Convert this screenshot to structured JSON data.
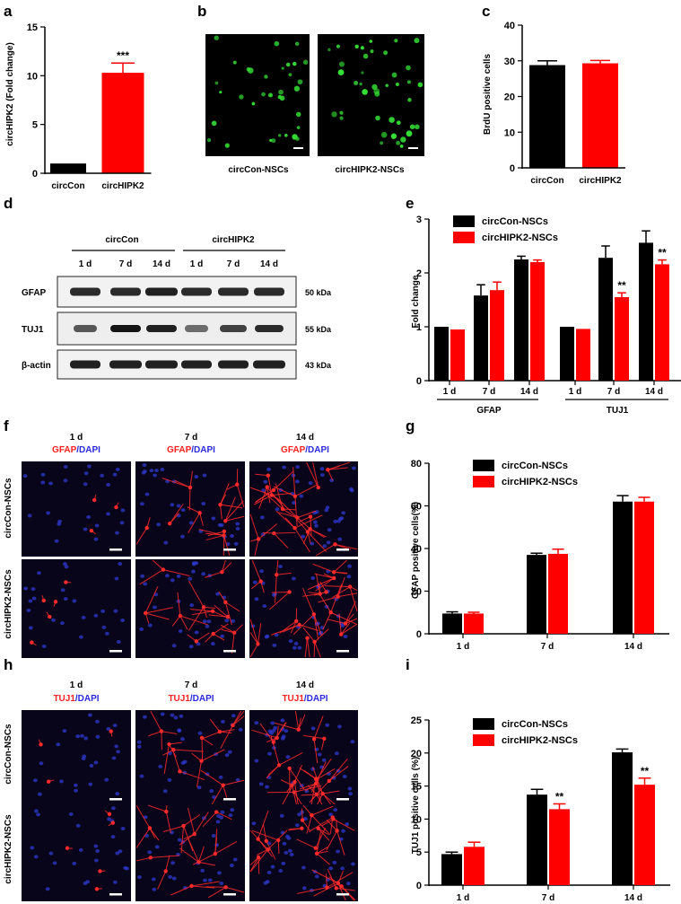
{
  "colors": {
    "con": "#000000",
    "hipk": "#ff0000",
    "green": "#35e035",
    "gfap_red": "#ff2a2a",
    "dapi_blue": "#2f3ad0"
  },
  "panels": {
    "a": {
      "label": "a",
      "ylabel": "circHIPK2 (Fold change)",
      "sig": "***"
    },
    "b": {
      "label": "b",
      "img1": "circCon-NSCs",
      "img2": "circHIPK2-NSCs"
    },
    "c": {
      "label": "c",
      "ylabel": "BrdU positive cells"
    },
    "d": {
      "label": "d",
      "group1": "circCon",
      "group2": "circHIPK2",
      "days": [
        "1 d",
        "7 d",
        "14 d",
        "1 d",
        "7 d",
        "14 d"
      ],
      "rows": [
        {
          "name": "GFAP",
          "kda": "50 kDa"
        },
        {
          "name": "TUJ1",
          "kda": "55 kDa"
        },
        {
          "name": "β-actin",
          "kda": "43 kDa"
        }
      ]
    },
    "e": {
      "label": "e",
      "ylabel": "Fold change",
      "group1": "GFAP",
      "group2": "TUJ1"
    },
    "f": {
      "label": "f",
      "row1": "circCon-NSCs",
      "row2": "circHIPK2-NSCs",
      "cols": [
        {
          "day": "1 d",
          "marker": "GFAP",
          "dapi": "/DAPI"
        },
        {
          "day": "7 d",
          "marker": "GFAP",
          "dapi": "/DAPI"
        },
        {
          "day": "14 d",
          "marker": "GFAP",
          "dapi": "/DAPI"
        }
      ]
    },
    "g": {
      "label": "g",
      "ylabel": "GFAP positive cells(%)"
    },
    "h": {
      "label": "h",
      "row1": "circCon-NSCs",
      "row2": "circHIPK2-NSCs",
      "cols": [
        {
          "day": "1 d",
          "marker": "TUJ1",
          "dapi": "/DAPI"
        },
        {
          "day": "7 d",
          "marker": "TUJ1",
          "dapi": "/DAPI"
        },
        {
          "day": "14 d",
          "marker": "TUJ1",
          "dapi": "/DAPI"
        }
      ]
    },
    "i": {
      "label": "i",
      "ylabel": "TUJ1 positive cells (%)"
    }
  },
  "chart_data": [
    {
      "id": "a",
      "type": "bar",
      "categories": [
        "circCon",
        "circHIPK2"
      ],
      "values": [
        1.0,
        10.3
      ],
      "errors": [
        0,
        1.0
      ],
      "ylim": [
        0,
        15
      ],
      "yticks": [
        0,
        5,
        10,
        15
      ],
      "ylabel": "circHIPK2 (Fold change)",
      "annotations": [
        "",
        "***"
      ]
    },
    {
      "id": "c",
      "type": "bar",
      "categories": [
        "circCon",
        "circHIPK2"
      ],
      "values": [
        28.8,
        29.3
      ],
      "errors": [
        1.2,
        0.8
      ],
      "ylim": [
        0,
        40
      ],
      "yticks": [
        0,
        10,
        20,
        30,
        40
      ],
      "ylabel": "BrdU positive cells"
    },
    {
      "id": "e",
      "type": "bar",
      "categories": [
        "1 d",
        "7 d",
        "14 d",
        "1 d",
        "7 d",
        "14 d"
      ],
      "groups": [
        "GFAP",
        "TUJ1"
      ],
      "series": [
        {
          "name": "circCon-NSCs",
          "values": [
            1.0,
            1.58,
            2.25,
            1.0,
            2.28,
            2.56
          ],
          "errors": [
            0,
            0.2,
            0.06,
            0,
            0.22,
            0.22
          ]
        },
        {
          "name": "circHIPK2-NSCs",
          "values": [
            0.95,
            1.68,
            2.2,
            0.96,
            1.55,
            2.16
          ],
          "errors": [
            0,
            0.15,
            0.04,
            0,
            0.08,
            0.08
          ]
        }
      ],
      "annotations": [
        "",
        "",
        "",
        "",
        "**",
        "**"
      ],
      "ylim": [
        0,
        3
      ],
      "yticks": [
        0,
        1,
        2,
        3
      ],
      "ylabel": "Fold change",
      "legend": "top-left"
    },
    {
      "id": "g",
      "type": "bar",
      "categories": [
        "1 d",
        "7 d",
        "14 d"
      ],
      "series": [
        {
          "name": "circCon-NSCs",
          "values": [
            9.5,
            37,
            62
          ],
          "errors": [
            0.8,
            0.8,
            2.8
          ]
        },
        {
          "name": "circHIPK2-NSCs",
          "values": [
            9.5,
            37.5,
            62
          ],
          "errors": [
            0.6,
            2.2,
            2.0
          ]
        }
      ],
      "ylim": [
        0,
        80
      ],
      "yticks": [
        0,
        20,
        40,
        60,
        80
      ],
      "ylabel": "GFAP positive cells(%)",
      "legend": "top-left"
    },
    {
      "id": "i",
      "type": "bar",
      "categories": [
        "1 d",
        "7 d",
        "14 d"
      ],
      "series": [
        {
          "name": "circCon-NSCs",
          "values": [
            4.7,
            13.7,
            20.1
          ],
          "errors": [
            0.3,
            0.8,
            0.5
          ]
        },
        {
          "name": "circHIPK2-NSCs",
          "values": [
            5.8,
            11.5,
            15.2
          ],
          "errors": [
            0.7,
            0.8,
            1.0
          ]
        }
      ],
      "annotations": [
        "",
        "**",
        "**"
      ],
      "ylim": [
        0,
        25
      ],
      "yticks": [
        0,
        5,
        10,
        15,
        20,
        25
      ],
      "ylabel": "TUJ1 positive cells (%)",
      "legend": "top-left"
    }
  ]
}
